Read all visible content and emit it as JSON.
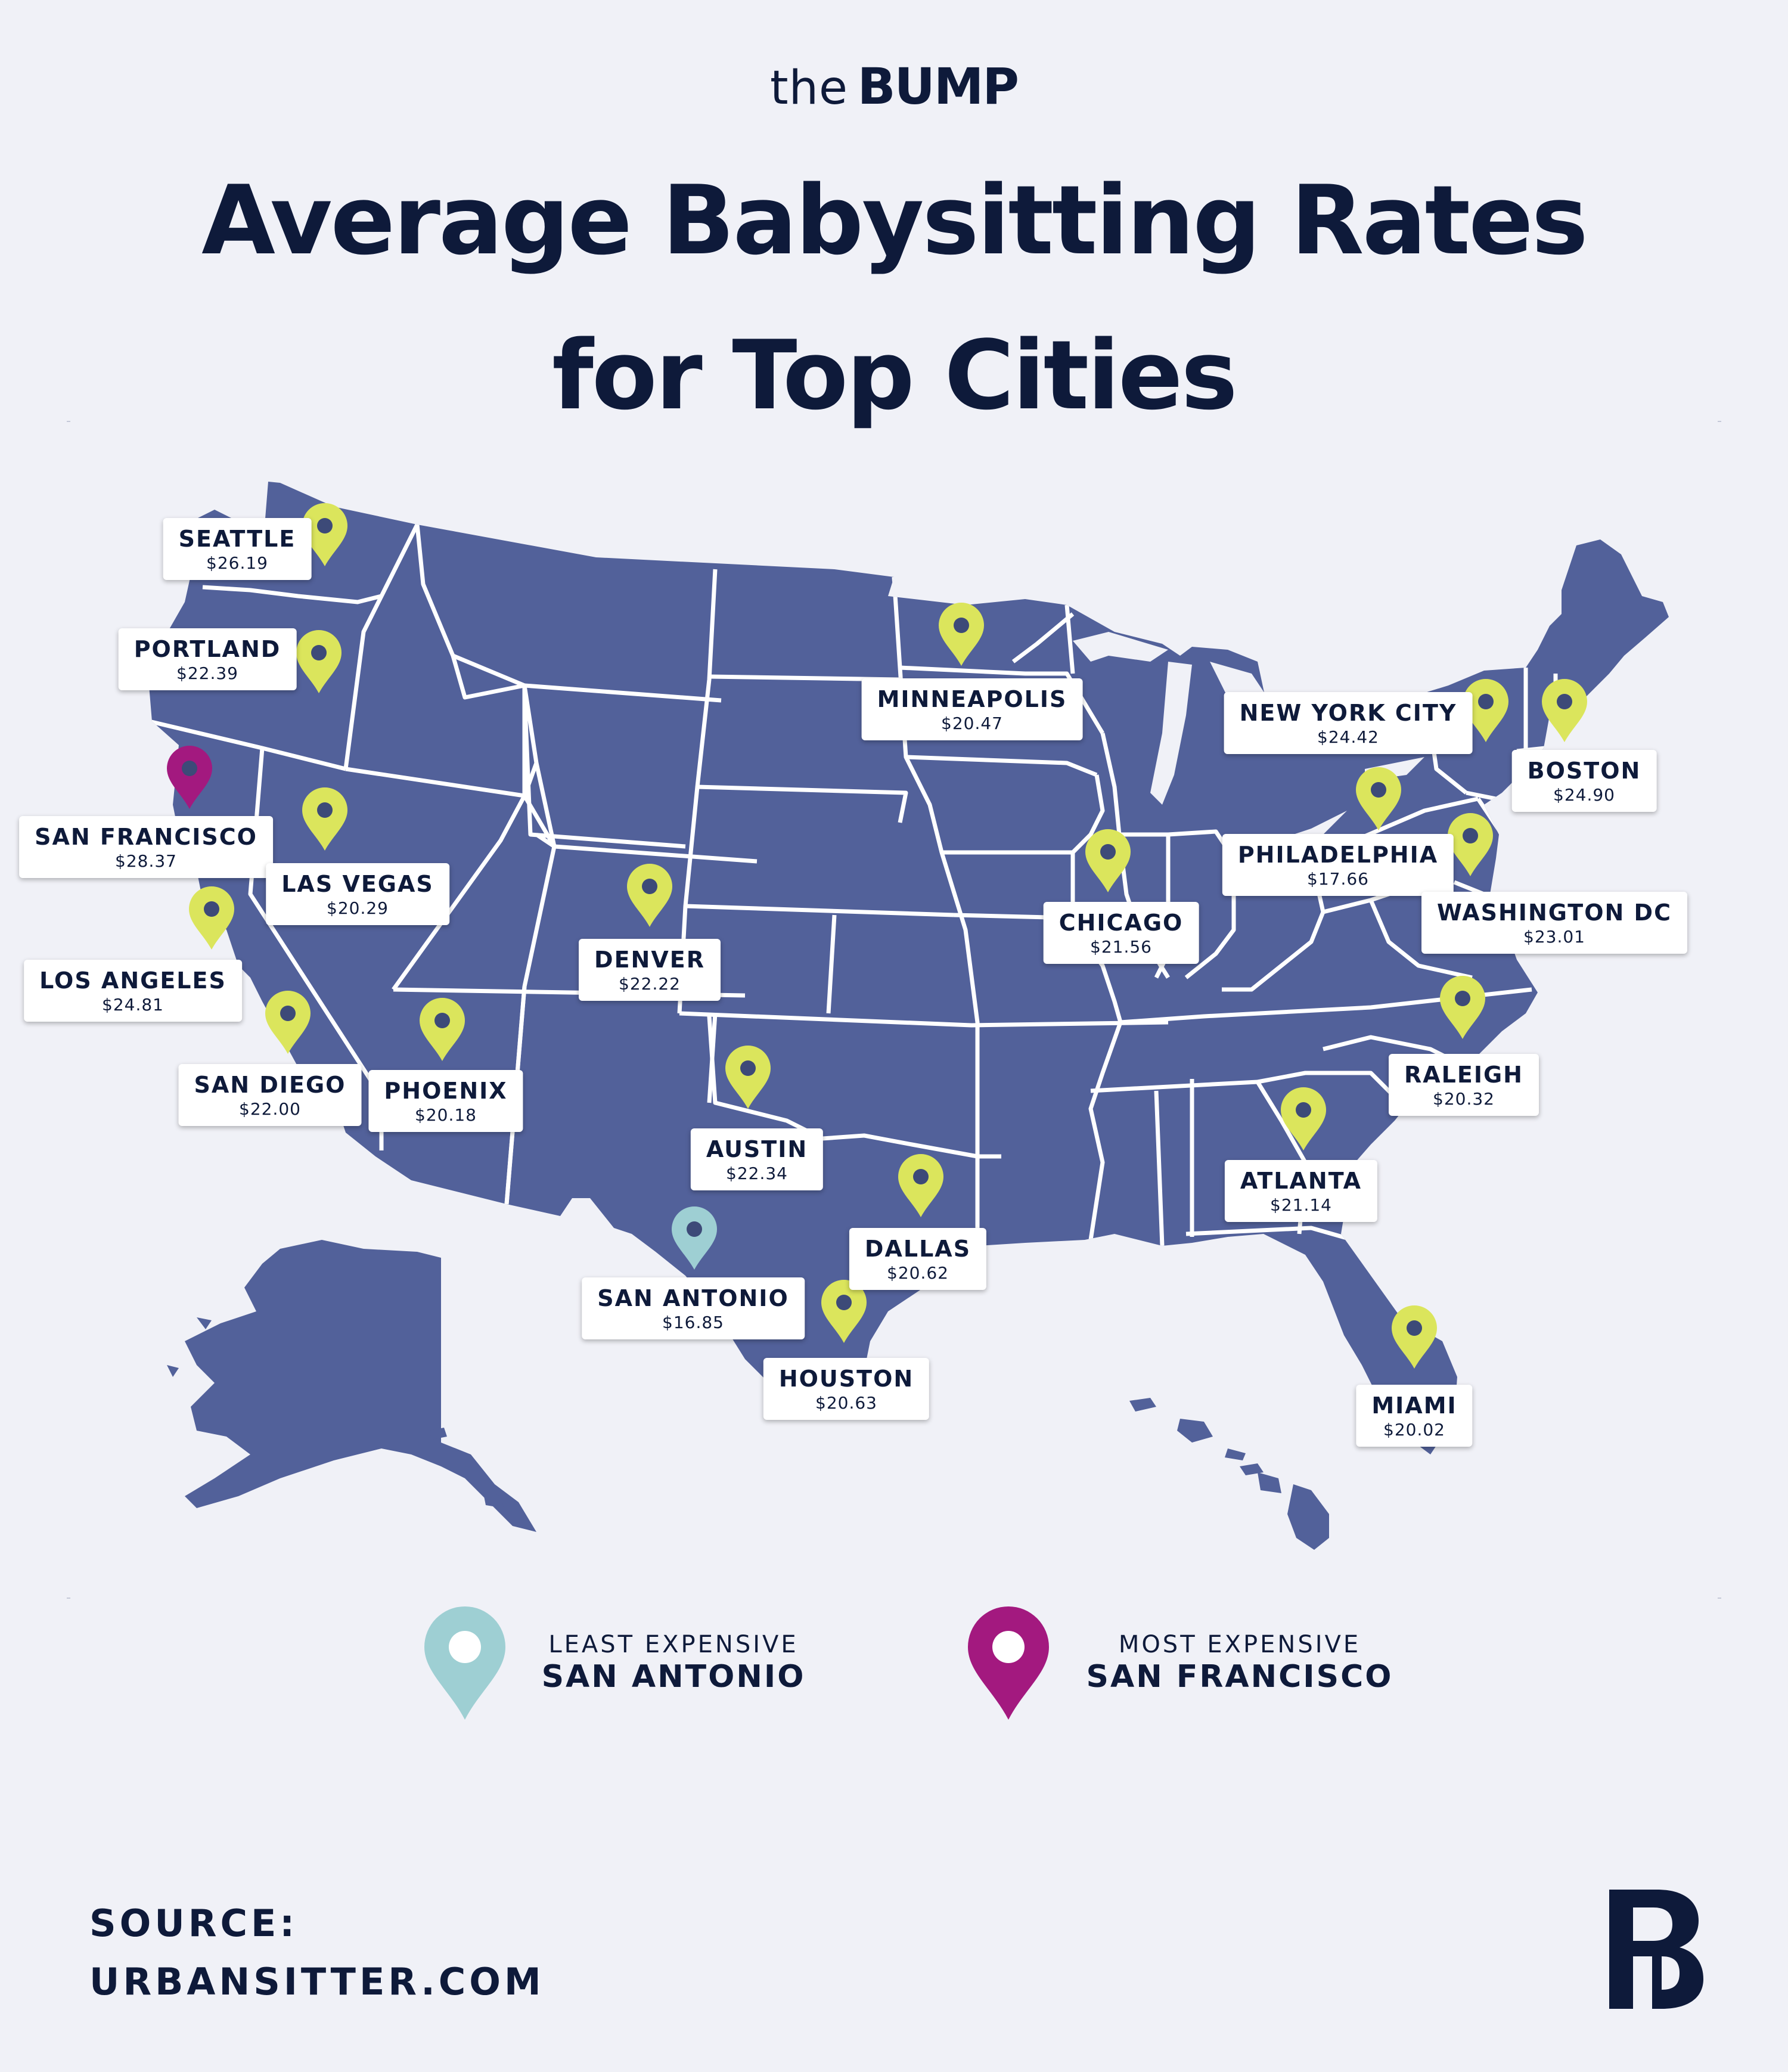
{
  "brand": {
    "prefix": "the",
    "name": "BUMP"
  },
  "title": {
    "line1": "Average Babysitting Rates",
    "line2": "for Top Cities"
  },
  "colors": {
    "background": "#f0f1f7",
    "map_fill": "#52619a",
    "state_border": "#ffffff",
    "pin_default": "#dbe55c",
    "pin_least": "#9ecfd3",
    "pin_most": "#a3197f",
    "pin_center": "#3d4a78",
    "text": "#0e1a3a"
  },
  "icons": {
    "pin": "map-pin-icon",
    "logo": "bump-b-logo-icon"
  },
  "cities": [
    {
      "name": "SEATTLE",
      "rate": "$26.19",
      "pin": "default"
    },
    {
      "name": "PORTLAND",
      "rate": "$22.39",
      "pin": "default"
    },
    {
      "name": "SAN FRANCISCO",
      "rate": "$28.37",
      "pin": "most"
    },
    {
      "name": "LAS VEGAS",
      "rate": "$20.29",
      "pin": "default"
    },
    {
      "name": "LOS ANGELES",
      "rate": "$24.81",
      "pin": "default"
    },
    {
      "name": "SAN DIEGO",
      "rate": "$22.00",
      "pin": "default"
    },
    {
      "name": "PHOENIX",
      "rate": "$20.18",
      "pin": "default"
    },
    {
      "name": "DENVER",
      "rate": "$22.22",
      "pin": "default"
    },
    {
      "name": "MINNEAPOLIS",
      "rate": "$20.47",
      "pin": "default"
    },
    {
      "name": "AUSTIN",
      "rate": "$22.34",
      "pin": "default"
    },
    {
      "name": "SAN ANTONIO",
      "rate": "$16.85",
      "pin": "least"
    },
    {
      "name": "DALLAS",
      "rate": "$20.62",
      "pin": "default"
    },
    {
      "name": "HOUSTON",
      "rate": "$20.63",
      "pin": "default"
    },
    {
      "name": "CHICAGO",
      "rate": "$21.56",
      "pin": "default"
    },
    {
      "name": "NEW YORK CITY",
      "rate": "$24.42",
      "pin": "default"
    },
    {
      "name": "BOSTON",
      "rate": "$24.90",
      "pin": "default"
    },
    {
      "name": "PHILADELPHIA",
      "rate": "$17.66",
      "pin": "default"
    },
    {
      "name": "WASHINGTON DC",
      "rate": "$23.01",
      "pin": "default"
    },
    {
      "name": "RALEIGH",
      "rate": "$20.32",
      "pin": "default"
    },
    {
      "name": "ATLANTA",
      "rate": "$21.14",
      "pin": "default"
    },
    {
      "name": "MIAMI",
      "rate": "$20.02",
      "pin": "default"
    }
  ],
  "legend": {
    "least": {
      "caption": "LEAST EXPENSIVE",
      "city": "SAN ANTONIO"
    },
    "most": {
      "caption": "MOST EXPENSIVE",
      "city": "SAN FRANCISCO"
    }
  },
  "source": {
    "label": "SOURCE:",
    "site": "URBANSITTER.COM"
  }
}
